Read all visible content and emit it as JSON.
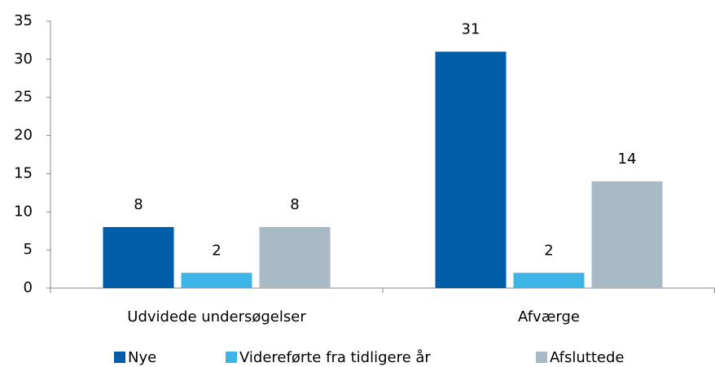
{
  "chart_data": {
    "type": "bar",
    "categories": [
      "Udvidede undersøgelser",
      "Afværge"
    ],
    "series": [
      {
        "name": "Nye",
        "color": "#005ea8",
        "values": [
          8,
          31
        ]
      },
      {
        "name": "Videreførte fra tidligere år",
        "color": "#3cb4e6",
        "values": [
          2,
          2
        ]
      },
      {
        "name": "Afsluttede",
        "color": "#a9bac7",
        "values": [
          8,
          14
        ]
      }
    ],
    "ylim": [
      0,
      35
    ],
    "yticks": [
      0,
      5,
      10,
      15,
      20,
      25,
      30,
      35
    ],
    "grid": false,
    "legend": "bottom"
  }
}
